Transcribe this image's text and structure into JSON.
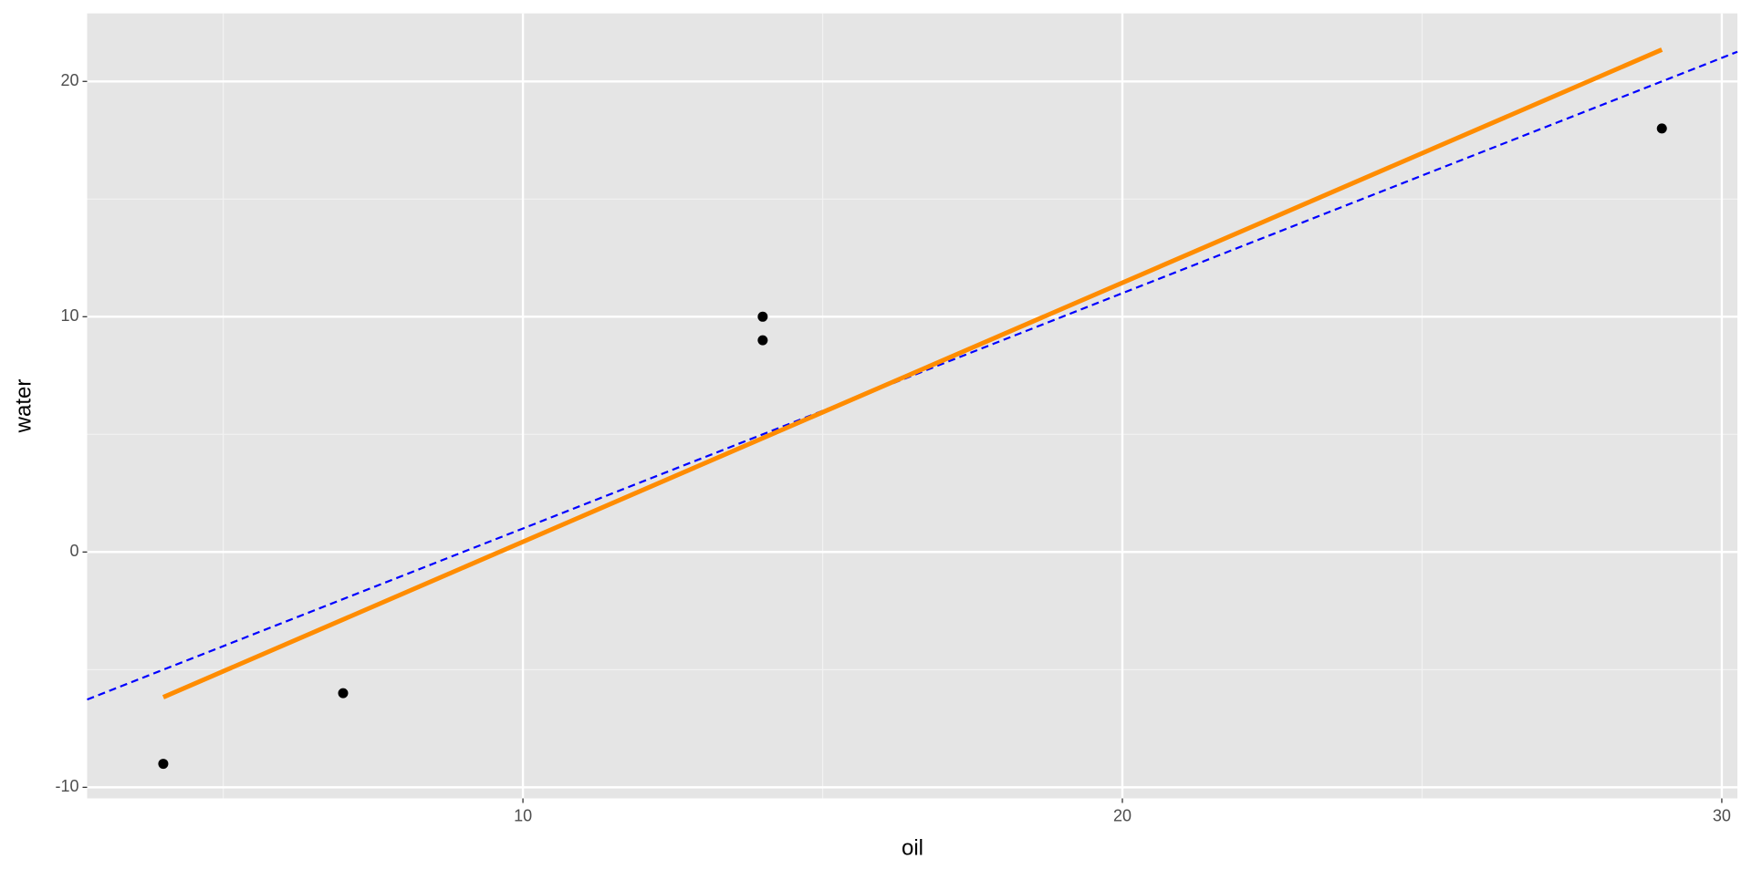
{
  "chart_data": {
    "type": "scatter",
    "x_label": "oil",
    "y_label": "water",
    "x": [
      4,
      7,
      14,
      14,
      29
    ],
    "values": [
      -9,
      -6,
      10,
      9,
      18
    ],
    "color": "#000000",
    "fit_line": {
      "x": [
        4,
        29
      ],
      "values": [
        -6.17,
        21.35
      ],
      "color": "#ff8c00"
    },
    "abline": {
      "intercept": -9,
      "slope": 1,
      "color": "#0000ff"
    },
    "xlim": [
      2.73,
      30.26
    ],
    "ylim": [
      -10.47,
      22.89
    ],
    "xticks": [
      10,
      20,
      30
    ],
    "yticks": [
      -10,
      0,
      10,
      20
    ],
    "x_minor_breaks": [
      5,
      15,
      25
    ],
    "y_minor_breaks": [
      -5,
      5,
      15
    ],
    "grid": true
  }
}
